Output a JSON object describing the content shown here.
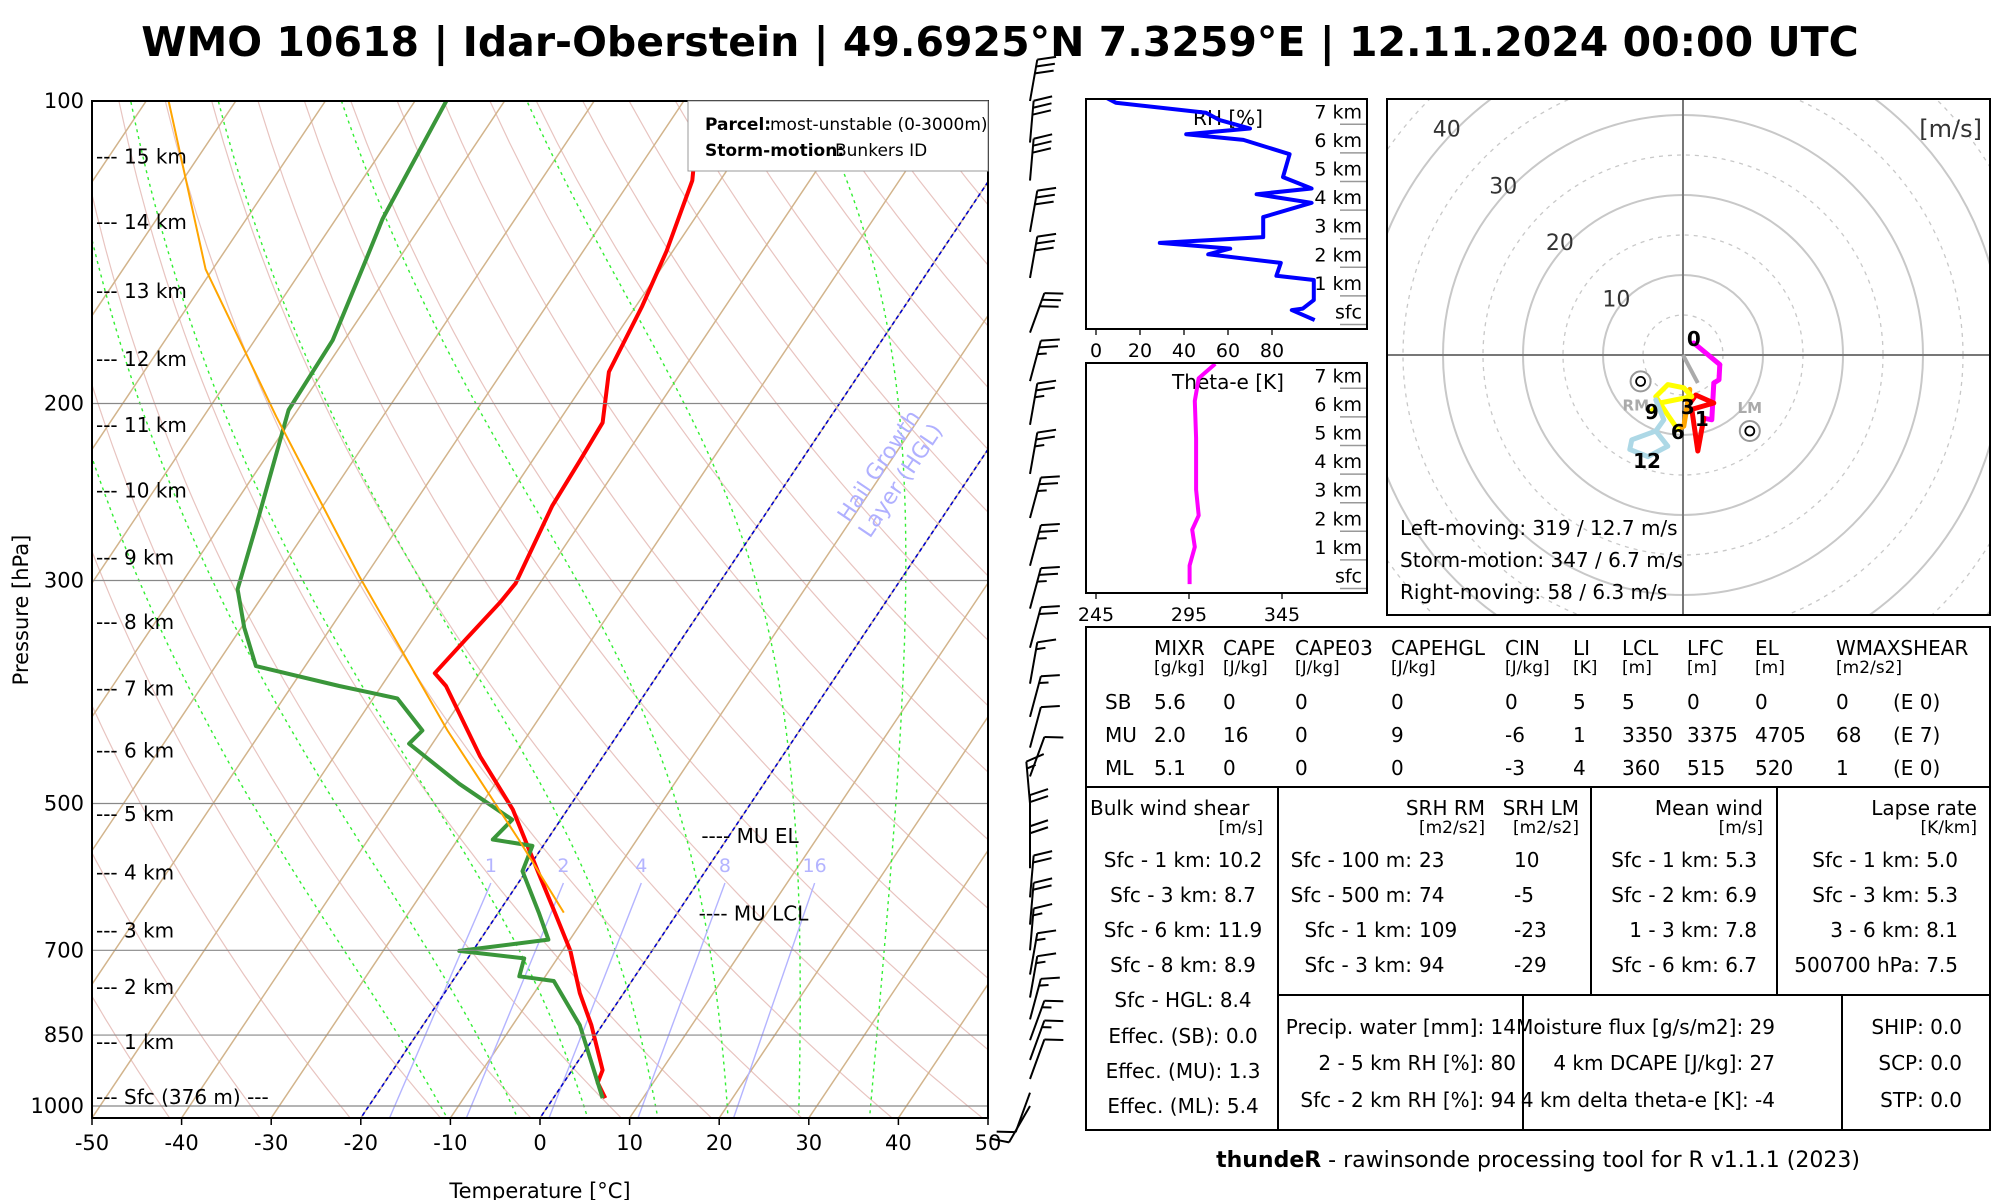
{
  "title": "WMO 10618 | Idar-Oberstein | 49.6925°N 7.3259°E | 12.11.2024 00:00 UTC",
  "footer": {
    "brand": "thundeR",
    "rest": " - rawinsonde processing tool for R v1.1.1 (2023)"
  },
  "chart_data": [
    {
      "type": "line",
      "name": "skew-t",
      "xlabel": "Temperature [°C]",
      "ylabel": "Pressure [hPa]",
      "xlim": [
        -50,
        50
      ],
      "ylim": [
        1042,
        100
      ],
      "xticks": [
        -50,
        -40,
        -30,
        -20,
        -10,
        0,
        10,
        20,
        30,
        40,
        50
      ],
      "yticks": [
        100,
        200,
        300,
        500,
        700,
        850,
        1000
      ],
      "legend": {
        "parcel_label": "Parcel:",
        "parcel_value": "most-unstable (0-3000m)",
        "storm_label": "Storm-motion:",
        "storm_value": "Bunkers ID"
      },
      "annotations": {
        "mu_el": "---- MU EL",
        "mu_el_p": 540,
        "mu_lcl": "---- MU LCL",
        "mu_lcl_p": 645,
        "hgl_line1": "Hail Growth",
        "hgl_line2": "Layer (HGL)"
      },
      "hgl_lines": [
        -20,
        0
      ],
      "mixing_ratio_labels": [
        "1",
        "2",
        "4",
        "8",
        "16"
      ],
      "mixing_ratios": [
        1,
        2,
        4,
        8,
        16
      ],
      "height_labels": [
        {
          "label": "--- 15 km",
          "p": 113.5
        },
        {
          "label": "--- 14 km",
          "p": 132
        },
        {
          "label": "--- 13 km",
          "p": 154.5
        },
        {
          "label": "--- 12 km",
          "p": 180.5
        },
        {
          "label": "--- 11 km",
          "p": 210
        },
        {
          "label": "--- 10 km",
          "p": 244
        },
        {
          "label": "--- 9 km",
          "p": 284.5
        },
        {
          "label": "--- 8 km",
          "p": 330
        },
        {
          "label": "--- 7 km",
          "p": 384
        },
        {
          "label": "--- 6 km",
          "p": 443
        },
        {
          "label": "--- 5 km",
          "p": 512
        },
        {
          "label": "--- 4 km",
          "p": 586
        },
        {
          "label": "--- 3 km",
          "p": 669
        },
        {
          "label": "--- 2 km",
          "p": 761
        },
        {
          "label": "--- 1 km",
          "p": 864
        },
        {
          "label": "--- Sfc (376 m) ---",
          "p": 980
        }
      ],
      "series": [
        {
          "name": "temperature",
          "color": "#ff0000",
          "p": [
            982,
            948,
            921,
            831,
            772,
            701,
            642,
            584,
            507,
            449,
            382,
            371,
            344,
            315,
            302,
            253,
            228,
            209,
            186,
            160,
            141,
            120,
            100
          ],
          "T": [
            5.8,
            3.8,
            3.4,
            -1.2,
            -4.9,
            -9.1,
            -13.7,
            -18.7,
            -26.1,
            -33.7,
            -42.8,
            -45,
            -44.1,
            -43,
            -42.7,
            -44.4,
            -44.7,
            -45,
            -48.1,
            -49.3,
            -50.7,
            -53.1,
            -58.2
          ]
        },
        {
          "name": "dewpoint",
          "color": "#3a963a",
          "p": [
            982,
            831,
            751,
            743,
            713,
            701,
            683,
            642,
            584,
            551,
            543,
            519,
            478,
            436,
            423,
            393,
            382,
            365,
            334,
            306,
            264,
            239,
            203,
            173,
            145,
            131,
            100
          ],
          "T": [
            5.5,
            -2.5,
            -8.7,
            -12.9,
            -13.7,
            -21.5,
            -12.4,
            -15.5,
            -20.4,
            -21.2,
            -26.1,
            -25.4,
            -34,
            -42.6,
            -42.1,
            -47.3,
            -54.7,
            -65.5,
            -69.7,
            -73.3,
            -76,
            -77.9,
            -81,
            -81.3,
            -83.5,
            -84.8,
            -86.5
          ]
        },
        {
          "name": "mu-parcel",
          "color": "#ffa500",
          "p": [
            642,
            543,
            423,
            297,
            206,
            147,
            100
          ],
          "T": [
            -12.7,
            -23.2,
            -39.3,
            -60.7,
            -81.9,
            -100.8,
            -117.5
          ]
        }
      ],
      "wind_barbs": [
        [
          1000,
          210,
          10
        ],
        [
          970,
          200,
          10
        ],
        [
          940,
          20,
          10
        ],
        [
          900,
          20,
          15
        ],
        [
          860,
          20,
          15
        ],
        [
          820,
          15,
          15
        ],
        [
          780,
          10,
          15
        ],
        [
          740,
          10,
          15
        ],
        [
          700,
          5,
          15
        ],
        [
          660,
          5,
          20
        ],
        [
          620,
          5,
          20
        ],
        [
          580,
          0,
          20
        ],
        [
          540,
          0,
          20
        ],
        [
          500,
          355,
          15
        ],
        [
          470,
          20,
          10
        ],
        [
          440,
          15,
          10
        ],
        [
          410,
          15,
          15
        ],
        [
          380,
          10,
          15
        ],
        [
          350,
          15,
          20
        ],
        [
          320,
          15,
          25
        ],
        [
          290,
          15,
          25
        ],
        [
          260,
          15,
          25
        ],
        [
          235,
          10,
          25
        ],
        [
          210,
          10,
          25
        ],
        [
          190,
          15,
          25
        ],
        [
          170,
          20,
          30
        ],
        [
          150,
          10,
          30
        ],
        [
          135,
          10,
          30
        ],
        [
          120,
          5,
          30
        ],
        [
          110,
          5,
          30
        ],
        [
          100,
          10,
          30
        ]
      ]
    },
    {
      "type": "line",
      "name": "rh-profile",
      "title": "RH [%]",
      "xlim": [
        -4.7,
        123
      ],
      "xticks": [
        0,
        20,
        40,
        60,
        80
      ],
      "height_labels": [
        "sfc",
        "1 km",
        "2 km",
        "3 km",
        "4 km",
        "5 km",
        "6 km",
        "7 km"
      ],
      "rh": [
        99.4,
        89,
        94,
        99,
        99,
        82,
        84,
        51,
        61,
        29,
        76,
        76,
        98,
        73,
        98,
        85,
        88,
        67,
        41,
        70,
        56,
        50,
        9,
        4
      ],
      "km": [
        -0.3,
        0.05,
        0.1,
        0.4,
        1.1,
        1.25,
        1.7,
        2.0,
        2.2,
        2.4,
        2.6,
        3.3,
        3.8,
        4.1,
        4.3,
        4.7,
        5.5,
        6.0,
        6.2,
        6.4,
        6.7,
        6.95,
        7.3,
        7.5
      ],
      "color": "#0000ff"
    },
    {
      "type": "line",
      "name": "theta-e-profile",
      "title": "Theta-e [K]",
      "xticks": [
        245,
        295,
        345
      ],
      "height_labels": [
        "sfc",
        "1 km",
        "2 km",
        "3 km",
        "4 km",
        "5 km",
        "6 km",
        "7 km"
      ],
      "theta_e": [
        295.3,
        295.3,
        298.1,
        296.7,
        300.2,
        298.8,
        298.8,
        298.1,
        300.2,
        309.1
      ],
      "km": [
        -0.3,
        0.35,
        1.0,
        1.6,
        2.1,
        3.0,
        4.8,
        6.1,
        6.9,
        7.4
      ],
      "color": "#ff00ff"
    },
    {
      "type": "line",
      "name": "hodograph",
      "units_label": "[m/s]",
      "ring_labels": [
        "10",
        "20",
        "30",
        "40"
      ],
      "segments": [
        {
          "label_end": "1",
          "color": "#ff00ff",
          "u": [
            1.35,
            4.6,
            4.5,
            3.85,
            3.6,
            2.6
          ],
          "v": [
            1.5,
            -1.2,
            -3.1,
            -3.5,
            -8.1,
            -7.9
          ]
        },
        {
          "label_end": "3",
          "color": "#ff0000",
          "u": [
            2.6,
            1.85,
            1.1,
            3.85,
            1.6,
            0.6
          ],
          "v": [
            -7.9,
            -12.0,
            -6.8,
            -6.0,
            -5.0,
            -6.4
          ]
        },
        {
          "label_end": "6",
          "color": "#ffa500",
          "u": [
            0.6,
            0.85,
            0.1,
            -0.65
          ],
          "v": [
            -6.4,
            -4.3,
            -8.9,
            -9.3
          ]
        },
        {
          "label_end": "9",
          "color": "#ffff00",
          "u": [
            -0.65,
            -1.9,
            -3.4,
            -1.9,
            0.1,
            1.1,
            -2.9,
            -3.9
          ],
          "v": [
            -9.3,
            -7.5,
            -5.2,
            -3.7,
            -4.1,
            -5.2,
            -6.0,
            -7.0
          ]
        },
        {
          "label_end": "12",
          "color": "#add8e6",
          "u": [
            -3.4,
            -2.4,
            -3.4,
            -6.4,
            -6.65,
            -4.4,
            -1.9,
            -3.4
          ],
          "v": [
            -5.6,
            -8.1,
            -9.5,
            -10.6,
            -11.8,
            -12.7,
            -11.4,
            -9.5
          ]
        }
      ],
      "height_labels": [
        {
          "text": "0",
          "u": 1.35,
          "v": 2.1
        },
        {
          "text": "1",
          "u": 2.35,
          "v": -7.9
        },
        {
          "text": "3",
          "u": 0.6,
          "v": -6.4
        },
        {
          "text": "6",
          "u": -0.65,
          "v": -9.5
        },
        {
          "text": "9",
          "u": -3.9,
          "v": -7.0
        },
        {
          "text": "12",
          "u": -4.5,
          "v": -13.1
        }
      ],
      "mean_wind": {
        "u": 1.85,
        "v": -3.5
      },
      "rm": {
        "label": "RM",
        "u": -5.3,
        "v": -3.3
      },
      "lm": {
        "label": "LM",
        "u": 8.35,
        "v": -9.5
      },
      "storm_text": [
        "Left-moving: 319 / 12.7 m/s",
        "Storm-motion: 347 / 6.7 m/s",
        "Right-moving: 58 / 6.3 m/s"
      ]
    }
  ],
  "params": {
    "headers": [
      "MIXR",
      "CAPE",
      "CAPE03",
      "CAPEHGL",
      "CIN",
      "LI",
      "LCL",
      "LFC",
      "EL",
      "WMAXSHEAR"
    ],
    "units": [
      "[g/kg]",
      "[J/kg]",
      "[J/kg]",
      "[J/kg]",
      "[J/kg]",
      "[K]",
      "[m]",
      "[m]",
      "[m]",
      "[m2/s2]"
    ],
    "rows": [
      {
        "name": "SB",
        "values": [
          "5.6",
          "0",
          "0",
          "0",
          "0",
          "5",
          "5",
          "0",
          "0",
          "0",
          "(E 0)"
        ]
      },
      {
        "name": "MU",
        "values": [
          "2.0",
          "16",
          "0",
          "9",
          "-6",
          "1",
          "3350",
          "3375",
          "4705",
          "68",
          "(E 7)"
        ]
      },
      {
        "name": "ML",
        "values": [
          "5.1",
          "0",
          "0",
          "0",
          "-3",
          "4",
          "360",
          "515",
          "520",
          "1",
          "(E 0)"
        ]
      }
    ]
  },
  "bulk_shear": {
    "title": "Bulk wind shear",
    "unit": "[m/s]",
    "rows": [
      "Sfc - 1 km: 10.2",
      "Sfc - 3 km: 8.7",
      "Sfc - 6 km: 11.9",
      "Sfc - 8 km: 8.9",
      "Sfc - HGL: 8.4",
      "Effec. (SB): 0.0",
      "Effec. (MU): 1.3",
      "Effec. (ML): 5.4"
    ]
  },
  "srh": {
    "rm_title": "SRH RM",
    "lm_title": "SRH LM",
    "rm_unit": "[m2/s2]",
    "lm_unit": "[m2/s2]",
    "rows": [
      {
        "label": "Sfc - 100 m:",
        "rm": "23",
        "lm": "10"
      },
      {
        "label": "Sfc - 500 m:",
        "rm": "74",
        "lm": "-5"
      },
      {
        "label": "Sfc - 1 km:",
        "rm": "109",
        "lm": "-23"
      },
      {
        "label": "Sfc - 3 km:",
        "rm": "94",
        "lm": "-29"
      }
    ]
  },
  "mean_wind": {
    "title": "Mean wind",
    "unit": "[m/s]",
    "rows": [
      "Sfc - 1 km: 5.3",
      "Sfc - 2 km: 6.9",
      "1 - 3 km: 7.8",
      "Sfc - 6 km: 6.7"
    ]
  },
  "lapse_rate": {
    "title": "Lapse rate",
    "unit": "[K/km]",
    "rows": [
      "Sfc - 1 km: 5.0",
      "Sfc - 3 km: 5.3",
      "3 - 6 km: 8.1",
      "500700 hPa: 7.5"
    ]
  },
  "moisture": {
    "rows": [
      "Precip. water [mm]: 14",
      "2 - 5 km RH [%]: 80",
      "Sfc - 2 km RH [%]: 94"
    ]
  },
  "moisture_flux": {
    "rows": [
      "Moisture flux [g/s/m2]: 29",
      "4 km DCAPE [J/kg]: 27",
      "4 km delta theta-e [K]: -4"
    ]
  },
  "composites": {
    "rows": [
      "SHIP: 0.0",
      "SCP: 0.0",
      "STP: 0.0"
    ]
  }
}
